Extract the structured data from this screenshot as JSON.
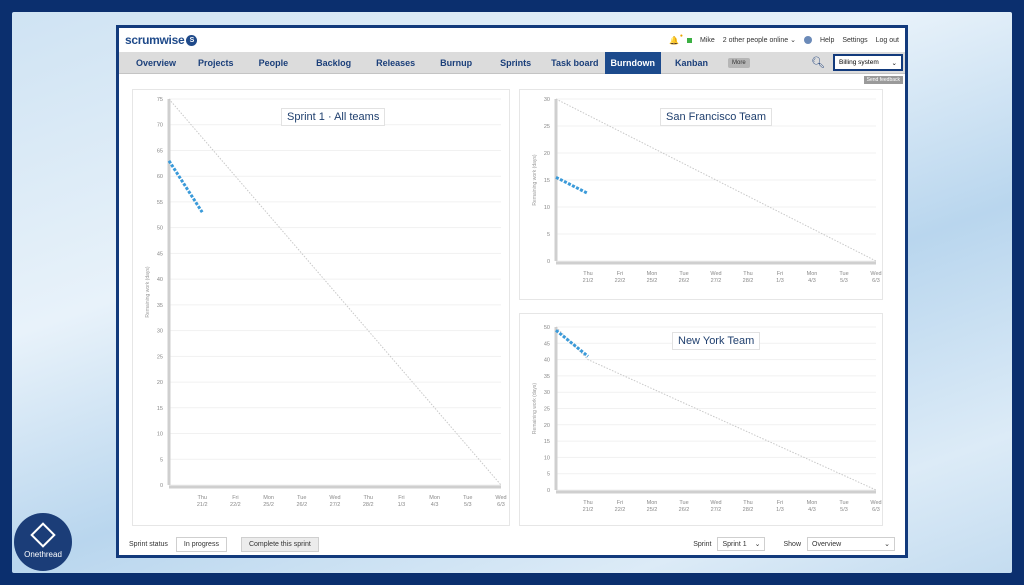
{
  "app": {
    "logo": "scrumwise",
    "user": "Mike",
    "online": "2 other people online",
    "links": [
      "Help",
      "Settings",
      "Log out"
    ]
  },
  "nav": {
    "items": [
      "Overview",
      "Projects",
      "People",
      "Backlog",
      "Releases",
      "Burnup",
      "Sprints",
      "Task board",
      "Burndown",
      "Kanban"
    ],
    "active": "Burndown",
    "more": "More",
    "project": "Billing system",
    "beta": "Send feedback"
  },
  "charts": {
    "main": {
      "title": "Sprint 1 · All teams"
    },
    "sf": {
      "title": "San Francisco Team"
    },
    "ny": {
      "title": "New York Team"
    },
    "ylabel": "Remaining work (days)"
  },
  "footer": {
    "status_label": "Sprint status",
    "status_value": "In progress",
    "complete_button": "Complete this sprint",
    "sprint_label": "Sprint",
    "sprint_value": "Sprint 1",
    "show_label": "Show",
    "show_value": "Overview"
  },
  "watermark": {
    "brand": "Onethread"
  },
  "chart_data": [
    {
      "type": "line",
      "title": "Sprint 1 · All teams",
      "ylabel": "Remaining work (days)",
      "ylim": [
        0,
        75
      ],
      "yticks": [
        0,
        5,
        10,
        15,
        20,
        25,
        30,
        35,
        40,
        45,
        50,
        55,
        60,
        65,
        70,
        75
      ],
      "categories": [
        "Thu 21/2",
        "Fri 22/2",
        "Mon 25/2",
        "Tue 26/2",
        "Wed 27/2",
        "Thu 28/2",
        "Fri 1/3",
        "Mon 4/3",
        "Tue 5/3",
        "Wed 6/3"
      ],
      "series": [
        {
          "style": "ideal",
          "points": [
            [
              0,
              75
            ],
            [
              10,
              0
            ]
          ]
        },
        {
          "style": "actual",
          "points": [
            [
              0,
              63
            ],
            [
              1,
              53
            ]
          ]
        }
      ]
    },
    {
      "type": "line",
      "title": "San Francisco Team",
      "ylabel": "Remaining work (days)",
      "ylim": [
        0,
        30
      ],
      "yticks": [
        0,
        5,
        10,
        15,
        20,
        25,
        30
      ],
      "categories": [
        "Thu 21/2",
        "Fri 22/2",
        "Mon 25/2",
        "Tue 26/2",
        "Wed 27/2",
        "Thu 28/2",
        "Fri 1/3",
        "Mon 4/3",
        "Tue 5/3",
        "Wed 6/3"
      ],
      "series": [
        {
          "style": "ideal",
          "points": [
            [
              0,
              30
            ],
            [
              10,
              0
            ]
          ]
        },
        {
          "style": "actual",
          "points": [
            [
              0,
              15.5
            ],
            [
              1,
              12.5
            ]
          ]
        }
      ]
    },
    {
      "type": "line",
      "title": "New York Team",
      "ylabel": "Remaining work (days)",
      "ylim": [
        0,
        50
      ],
      "yticks": [
        0,
        5,
        10,
        15,
        20,
        25,
        30,
        35,
        40,
        45,
        50
      ],
      "categories": [
        "Thu 21/2",
        "Fri 22/2",
        "Mon 25/2",
        "Tue 26/2",
        "Wed 27/2",
        "Thu 28/2",
        "Fri 1/3",
        "Mon 4/3",
        "Tue 5/3",
        "Wed 6/3"
      ],
      "series": [
        {
          "style": "ideal",
          "points": [
            [
              0,
              50
            ],
            [
              1,
              40
            ],
            [
              10,
              0
            ]
          ]
        },
        {
          "style": "actual",
          "points": [
            [
              0,
              49
            ],
            [
              1,
              41
            ]
          ]
        }
      ]
    }
  ],
  "colors": {
    "navy": "#123a7c",
    "nav_active": "#1c4a8c",
    "actual_line": "#3a9ad9",
    "ideal_line": "#c8c8c8"
  }
}
